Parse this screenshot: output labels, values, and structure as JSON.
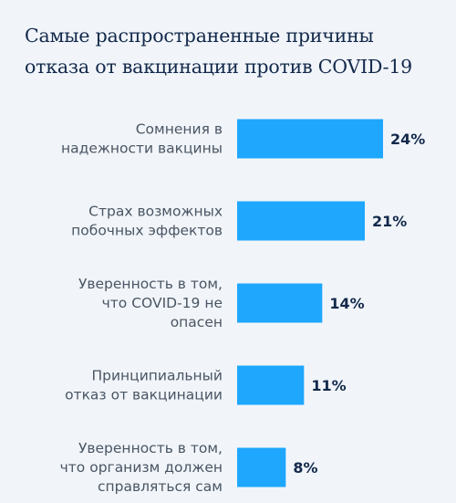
{
  "title_lines": [
    "Самые распространенные причины",
    "отказа от вакцинации против COVID-19"
  ],
  "colors": {
    "bar": "#1ea7fd",
    "background": "#f1f5fa",
    "title": "#13294b",
    "value_label": "#13294b",
    "category_label": "#4a5563"
  },
  "chart_data": {
    "type": "bar",
    "orientation": "horizontal",
    "title": "Самые распространенные причины отказа от вакцинации против COVID-19",
    "xlabel": "",
    "ylabel": "",
    "xlim": [
      0,
      30
    ],
    "grid": false,
    "categories": [
      [
        "Сомнения в",
        "надежности вакцины"
      ],
      [
        "Страх возможных",
        "побочных эффектов"
      ],
      [
        "Уверенность в том,",
        "что COVID-19 не",
        "опасен"
      ],
      [
        "Принципиальный",
        "отказ от вакцинации"
      ],
      [
        "Уверенность в том,",
        "что организм должен",
        "справляться сам"
      ]
    ],
    "values": [
      24,
      21,
      14,
      11,
      8
    ],
    "value_labels": [
      "24%",
      "21%",
      "14%",
      "11%",
      "8%"
    ]
  }
}
